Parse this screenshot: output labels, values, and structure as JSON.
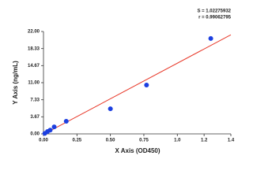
{
  "chart_data": {
    "type": "scatter",
    "annotations": [
      "S = 1.02275932",
      "r = 0.99062795"
    ],
    "x_label": "X Axis (OD450)",
    "y_label": "Y Axis (ng/mL)",
    "x": [
      0.01,
      0.03,
      0.05,
      0.08,
      0.17,
      0.5,
      0.77,
      1.25
    ],
    "values": [
      0.1,
      0.5,
      0.8,
      1.5,
      2.7,
      5.4,
      10.5,
      20.5
    ],
    "color": "#1c3fe0",
    "fit": {
      "x": [
        0,
        1.4
      ],
      "y": [
        -0.1,
        21.3
      ],
      "color": "#e8392a"
    },
    "xlim": [
      0,
      1.4
    ],
    "xticks": [
      {
        "value": 0,
        "label": "0.00"
      },
      {
        "value": 0.25,
        "label": "0.25"
      },
      {
        "value": 0.5,
        "label": "0.50"
      },
      {
        "value": 0.75,
        "label": "0.75"
      },
      {
        "value": 1.0,
        "label": "1.0"
      },
      1.2,
      1.4
    ],
    "ylim": [
      0,
      22
    ],
    "yticks": [
      {
        "value": 0,
        "label": "0.00"
      },
      3.67,
      7.33,
      {
        "value": 11,
        "label": "11.00"
      },
      14.67,
      18.33,
      {
        "value": 22,
        "label": "22.00"
      }
    ]
  }
}
